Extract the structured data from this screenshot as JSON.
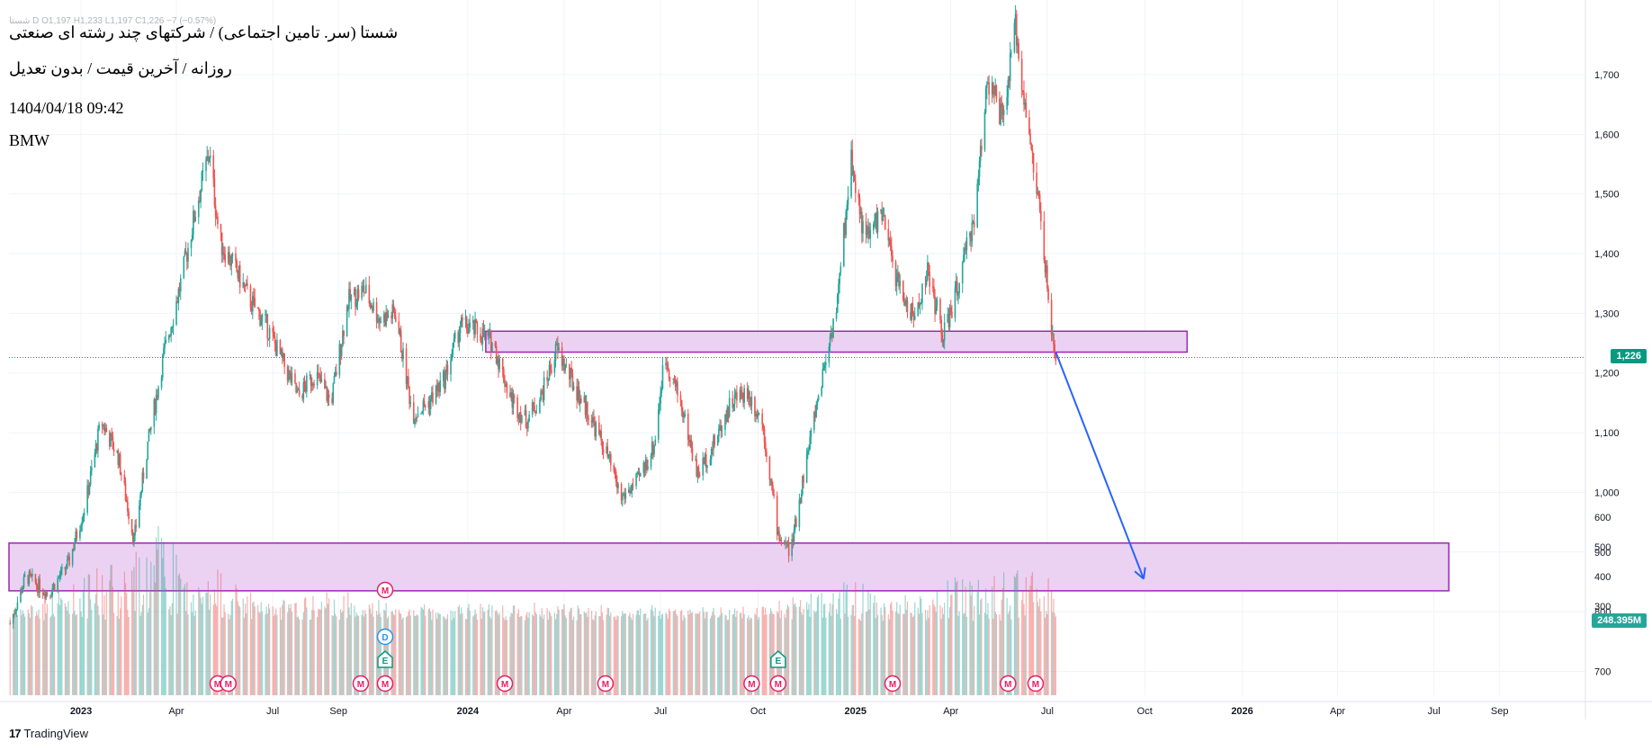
{
  "header": {
    "ohlc_line": "شستا  D  O1,197  H1,233  L1,197  C1,226  −7 (−0.57%)",
    "title": "شستا (سر. تامین اجتماعی) / شرکتهای چند رشته ای صنعتی",
    "subtitle": "روزانه / آخرین قیمت / بدون تعدیل",
    "datetime": "1404/04/18 09:42",
    "ticker": "BMW"
  },
  "branding": {
    "logo": "17",
    "name": "TradingView"
  },
  "colors": {
    "up": "#26a69a",
    "down": "#ef5350",
    "zone_fill": "#e9cdf2",
    "zone_stroke": "#9c27b0",
    "arrow": "#2962ff",
    "price_line": "#089981",
    "grid": "#f0f3fa"
  },
  "markers": {
    "earnings": "E",
    "dividend": "D",
    "meeting": "M"
  },
  "chart_data": {
    "type": "candlestick",
    "title": "",
    "xlabel": "",
    "ylabel": "",
    "ylim": [
      660,
      1810
    ],
    "last_price": 1226,
    "last_price_label": "1,226",
    "volume_label": "248.395M",
    "y_ticks": [
      700,
      800,
      900,
      1000,
      1100,
      1200,
      1300,
      1400,
      1500,
      1600,
      1700
    ],
    "y_tick_labels": [
      "700",
      "800",
      "900",
      "1,000",
      "1,100",
      "1,200",
      "1,300",
      "1,400",
      "1,500",
      "1,600",
      "1,700"
    ],
    "x_ticks": [
      "2023",
      "Apr",
      "Jul",
      "Sep",
      "2024",
      "Apr",
      "Jul",
      "Oct",
      "2025",
      "Apr",
      "Jul",
      "Oct",
      "2026",
      "Apr",
      "Jul",
      "Sep"
    ],
    "x_tick_dates": [
      "2023-01-01",
      "2023-04-01",
      "2023-07-01",
      "2023-09-01",
      "2024-01-01",
      "2024-04-01",
      "2024-07-01",
      "2024-10-01",
      "2025-01-01",
      "2025-04-01",
      "2025-07-01",
      "2025-10-01",
      "2026-01-01",
      "2026-04-01",
      "2026-07-01",
      "2026-09-01"
    ],
    "x_range": [
      "2022-10-25",
      "2026-11-15"
    ],
    "price_path": [
      [
        "2022-10-26",
        780
      ],
      [
        "2022-11-10",
        860
      ],
      [
        "2022-12-01",
        830
      ],
      [
        "2022-12-20",
        880
      ],
      [
        "2023-01-05",
        980
      ],
      [
        "2023-01-20",
        1120
      ],
      [
        "2023-02-05",
        1060
      ],
      [
        "2023-02-20",
        920
      ],
      [
        "2023-03-05",
        1080
      ],
      [
        "2023-03-20",
        1230
      ],
      [
        "2023-04-05",
        1350
      ],
      [
        "2023-04-20",
        1480
      ],
      [
        "2023-05-02",
        1570
      ],
      [
        "2023-05-12",
        1420
      ],
      [
        "2023-05-25",
        1380
      ],
      [
        "2023-06-10",
        1320
      ],
      [
        "2023-06-25",
        1280
      ],
      [
        "2023-07-10",
        1220
      ],
      [
        "2023-07-25",
        1160
      ],
      [
        "2023-08-10",
        1200
      ],
      [
        "2023-08-25",
        1150
      ],
      [
        "2023-09-10",
        1320
      ],
      [
        "2023-09-25",
        1340
      ],
      [
        "2023-10-10",
        1290
      ],
      [
        "2023-10-25",
        1300
      ],
      [
        "2023-11-10",
        1130
      ],
      [
        "2023-11-25",
        1150
      ],
      [
        "2023-12-10",
        1190
      ],
      [
        "2023-12-25",
        1280
      ],
      [
        "2024-01-10",
        1270
      ],
      [
        "2024-01-25",
        1250
      ],
      [
        "2024-02-10",
        1160
      ],
      [
        "2024-02-25",
        1120
      ],
      [
        "2024-03-10",
        1160
      ],
      [
        "2024-03-25",
        1240
      ],
      [
        "2024-04-10",
        1180
      ],
      [
        "2024-04-25",
        1130
      ],
      [
        "2024-05-10",
        1070
      ],
      [
        "2024-05-25",
        990
      ],
      [
        "2024-06-10",
        1020
      ],
      [
        "2024-06-25",
        1080
      ],
      [
        "2024-07-05",
        1230
      ],
      [
        "2024-07-20",
        1150
      ],
      [
        "2024-08-05",
        1030
      ],
      [
        "2024-08-20",
        1080
      ],
      [
        "2024-09-05",
        1150
      ],
      [
        "2024-09-20",
        1170
      ],
      [
        "2024-10-05",
        1120
      ],
      [
        "2024-10-20",
        930
      ],
      [
        "2024-11-01",
        900
      ],
      [
        "2024-11-15",
        1050
      ],
      [
        "2024-12-01",
        1200
      ],
      [
        "2024-12-15",
        1320
      ],
      [
        "2024-12-28",
        1560
      ],
      [
        "2025-01-10",
        1420
      ],
      [
        "2025-01-25",
        1470
      ],
      [
        "2025-02-10",
        1350
      ],
      [
        "2025-02-25",
        1290
      ],
      [
        "2025-03-10",
        1370
      ],
      [
        "2025-03-25",
        1260
      ],
      [
        "2025-04-10",
        1360
      ],
      [
        "2025-04-25",
        1480
      ],
      [
        "2025-05-05",
        1700
      ],
      [
        "2025-05-20",
        1620
      ],
      [
        "2025-06-01",
        1780
      ],
      [
        "2025-06-15",
        1580
      ],
      [
        "2025-06-25",
        1460
      ],
      [
        "2025-07-05",
        1260
      ],
      [
        "2025-07-09",
        1226
      ]
    ],
    "volume_scale_max": 630,
    "volume_path": [
      [
        "2022-10-26",
        260
      ],
      [
        "2023-01-01",
        390
      ],
      [
        "2023-03-20",
        600
      ],
      [
        "2023-04-15",
        370
      ],
      [
        "2023-05-10",
        420
      ],
      [
        "2023-07-01",
        300
      ],
      [
        "2023-09-01",
        340
      ],
      [
        "2023-11-01",
        280
      ],
      [
        "2024-01-15",
        300
      ],
      [
        "2024-04-01",
        290
      ],
      [
        "2024-07-01",
        280
      ],
      [
        "2024-10-15",
        290
      ],
      [
        "2025-01-01",
        400
      ],
      [
        "2025-02-01",
        320
      ],
      [
        "2025-05-10",
        420
      ],
      [
        "2025-07-05",
        410
      ],
      [
        "2025-07-09",
        248
      ]
    ],
    "zones": [
      {
        "x_start": "2024-01-18",
        "x_end": "2025-11-10",
        "y_low": 1235,
        "y_high": 1270
      },
      {
        "x_start": "2022-10-25",
        "x_end": "2026-07-15",
        "y_low": 835,
        "y_high": 915
      }
    ],
    "projection_arrow": {
      "from": [
        "2025-07-09",
        1235
      ],
      "to": [
        "2025-09-30",
        855
      ]
    },
    "event_markers": [
      {
        "type": "M",
        "date": "2023-05-10"
      },
      {
        "type": "M",
        "date": "2023-05-20"
      },
      {
        "type": "M",
        "date": "2023-09-22"
      },
      {
        "type": "M",
        "date": "2023-10-15"
      },
      {
        "type": "E",
        "date": "2023-10-15"
      },
      {
        "type": "D",
        "date": "2023-10-15"
      },
      {
        "type": "M",
        "date": "2023-10-15",
        "row": 4
      },
      {
        "type": "M",
        "date": "2024-02-05"
      },
      {
        "type": "M",
        "date": "2024-05-10"
      },
      {
        "type": "M",
        "date": "2024-09-25"
      },
      {
        "type": "M",
        "date": "2024-10-20"
      },
      {
        "type": "E",
        "date": "2024-10-20"
      },
      {
        "type": "M",
        "date": "2025-02-05"
      },
      {
        "type": "M",
        "date": "2025-05-25"
      },
      {
        "type": "M",
        "date": "2025-06-20"
      }
    ]
  }
}
